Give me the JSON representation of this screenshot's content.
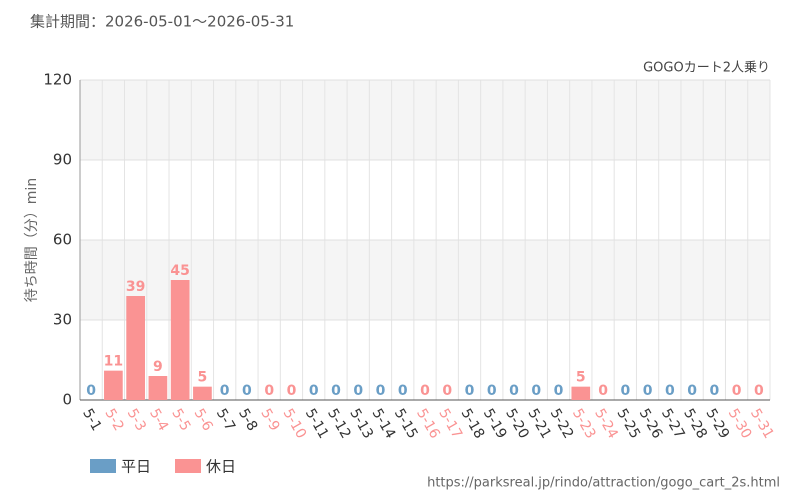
{
  "chart_data": {
    "type": "bar",
    "title": "集計期間：2026-05-01～2026-05-31",
    "subtitle": "GOGOカート2人乗り",
    "y_label": "待ち時間（分）min",
    "source": "https://parksreal.jp/rindo/attraction/gogo_cart_2s.html",
    "categories": [
      "5-1",
      "5-2",
      "5-3",
      "5-4",
      "5-5",
      "5-6",
      "5-7",
      "5-8",
      "5-9",
      "5-10",
      "5-11",
      "5-12",
      "5-13",
      "5-14",
      "5-15",
      "5-16",
      "5-17",
      "5-18",
      "5-19",
      "5-20",
      "5-21",
      "5-22",
      "5-23",
      "5-24",
      "5-25",
      "5-26",
      "5-27",
      "5-28",
      "5-29",
      "5-30",
      "5-31"
    ],
    "series": [
      {
        "name": "平日",
        "color": "#6a9ec6",
        "values": [
          0,
          null,
          null,
          null,
          null,
          null,
          0,
          0,
          null,
          null,
          0,
          0,
          0,
          0,
          0,
          null,
          null,
          0,
          0,
          0,
          0,
          0,
          null,
          null,
          0,
          0,
          0,
          0,
          0,
          null,
          null
        ]
      },
      {
        "name": "休日",
        "color": "#fa9393",
        "values": [
          null,
          11,
          39,
          9,
          45,
          5,
          null,
          null,
          0,
          0,
          null,
          null,
          null,
          null,
          null,
          0,
          0,
          null,
          null,
          null,
          null,
          null,
          5,
          0,
          null,
          null,
          null,
          null,
          null,
          0,
          0
        ]
      }
    ],
    "ylim": [
      0,
      120
    ],
    "yticks": [
      0,
      30,
      60,
      90,
      120
    ],
    "grid": true
  }
}
